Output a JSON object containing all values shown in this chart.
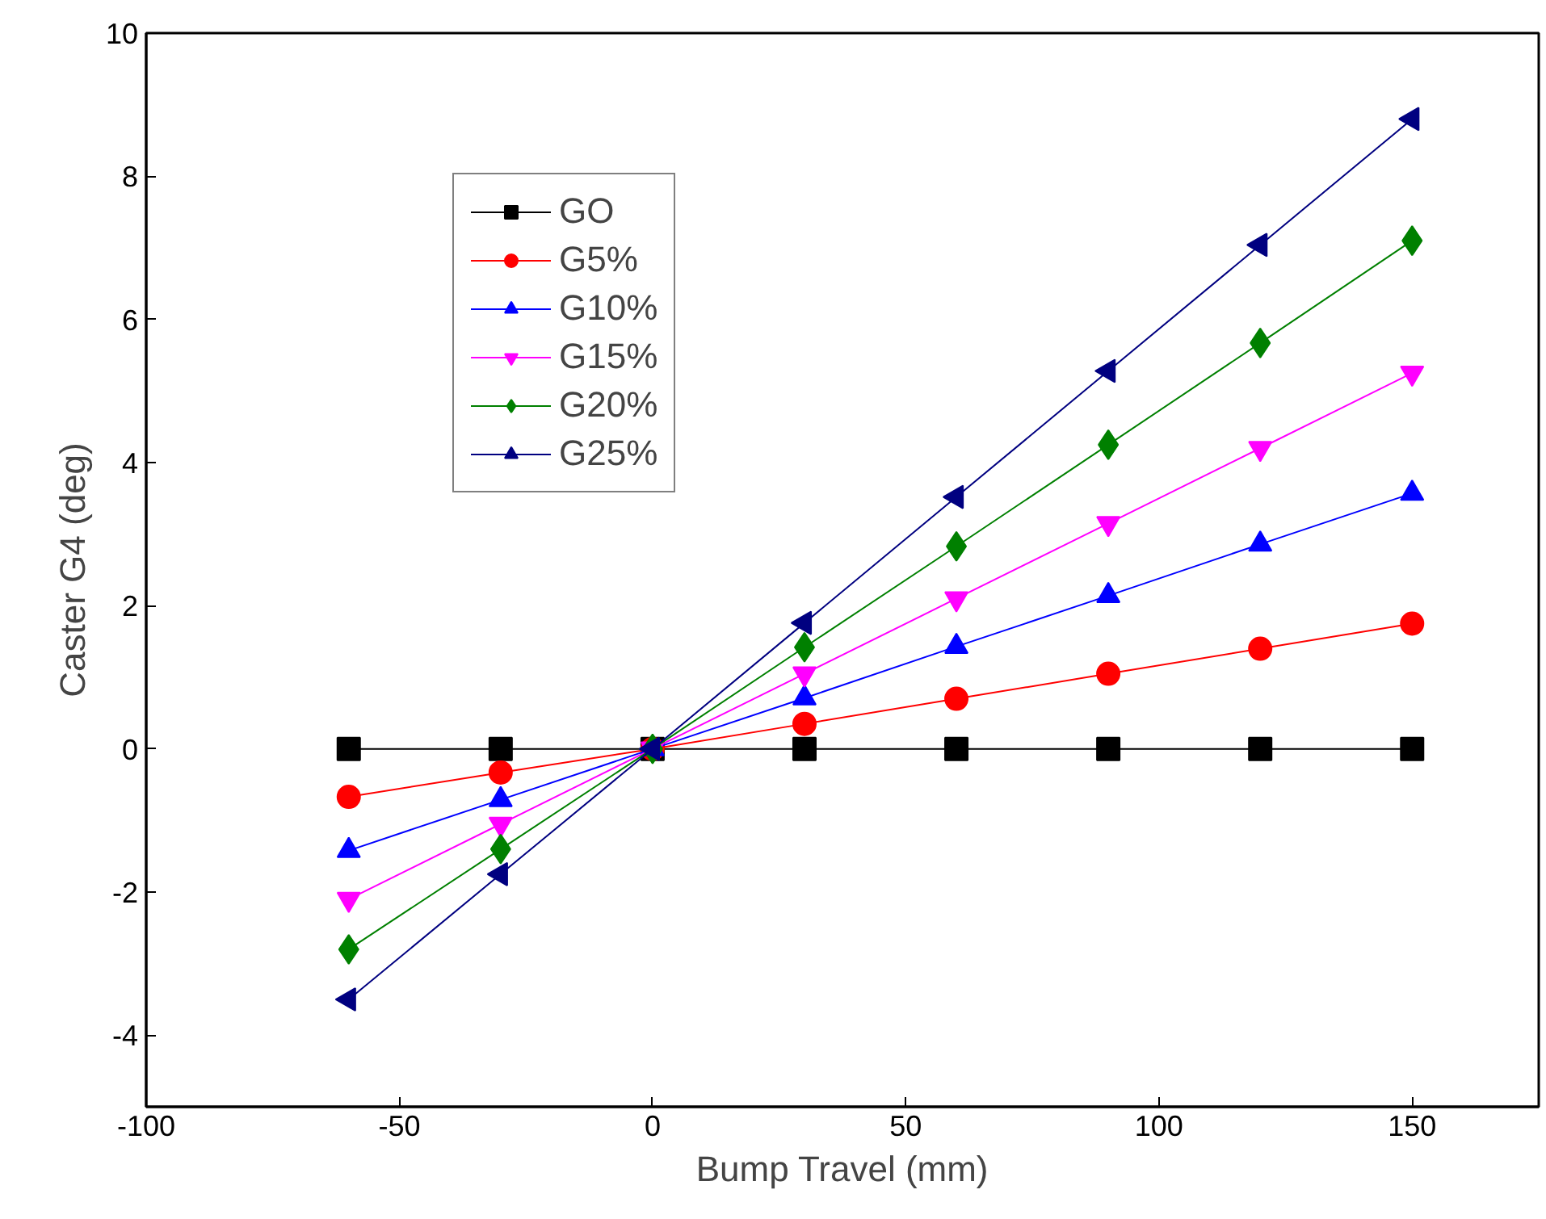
{
  "chart_data": {
    "type": "line",
    "xlabel": "Bump Travel (mm)",
    "ylabel": "Caster G4 (deg)",
    "x": [
      -60,
      -30,
      0,
      30,
      60,
      90,
      120,
      150
    ],
    "xlim": [
      -100,
      175
    ],
    "xticks": [
      -100,
      -50,
      0,
      50,
      100,
      150
    ],
    "ylim": [
      -5,
      10
    ],
    "yticks": [
      {
        "value": -5,
        "label": null
      },
      -4,
      -2,
      0,
      2,
      4,
      6,
      8,
      10
    ],
    "grid": false,
    "legend": "top left",
    "line_style": "solid",
    "series": [
      {
        "name": "GO",
        "color": "#000000",
        "marker": "square",
        "values": [
          0,
          0,
          0,
          0,
          0,
          0,
          0,
          0
        ]
      },
      {
        "name": "G5%",
        "color": "#ff0000",
        "marker": "circle",
        "values": [
          -0.67,
          -0.33,
          0,
          0.35,
          0.7,
          1.05,
          1.4,
          1.75
        ]
      },
      {
        "name": "G10%",
        "color": "#0000ff",
        "marker": "triangle",
        "values": [
          -1.42,
          -0.71,
          0,
          0.71,
          1.43,
          2.14,
          2.86,
          3.57
        ]
      },
      {
        "name": "G15%",
        "color": "#ff00ff",
        "marker": "triangle_down",
        "values": [
          -2.1,
          -1.05,
          0,
          1.05,
          2.1,
          3.15,
          4.2,
          5.25
        ]
      },
      {
        "name": "G20%",
        "color": "#008000",
        "marker": "diamond",
        "values": [
          -2.8,
          -1.4,
          0,
          1.42,
          2.83,
          4.25,
          5.67,
          7.1
        ]
      },
      {
        "name": "G25%",
        "color": "#000080",
        "marker": "triangle_left",
        "values": [
          -3.5,
          -1.75,
          0,
          1.76,
          3.52,
          5.28,
          7.04,
          8.8
        ]
      }
    ]
  }
}
